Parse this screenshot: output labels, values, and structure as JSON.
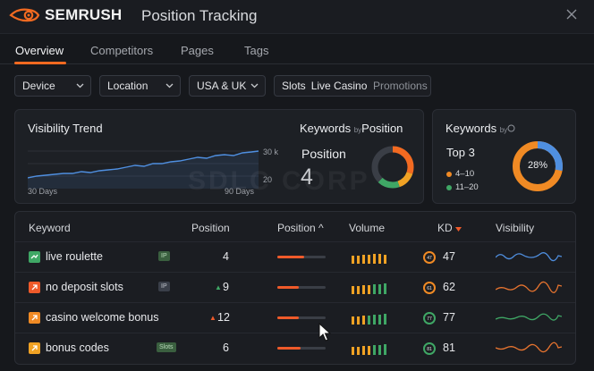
{
  "app": {
    "brand": "SEMRUSH",
    "title": "Position Tracking"
  },
  "tabs": [
    {
      "label": "Overview",
      "active": true
    },
    {
      "label": "Competitors",
      "active": false
    },
    {
      "label": "Pages",
      "active": false
    },
    {
      "label": "Tags",
      "active": false
    }
  ],
  "filters": {
    "device": "Device",
    "location": "Location",
    "region": "USA & UK",
    "slots_label": "Slots",
    "slots_value": "Live Casino",
    "promotions": "Promotions"
  },
  "visibility_card": {
    "title": "Visibility Trend",
    "y_top": "30 k",
    "y_bottom": "20",
    "x_left": "30 Days",
    "x_right": "90 Days"
  },
  "keywords_position_card": {
    "title_main": "Keywords",
    "title_by": "by",
    "title_sub": "Position",
    "label": "Position",
    "value": "4"
  },
  "keywords_by_card": {
    "title_main": "Keywords",
    "title_by": "by",
    "top_label": "Top 3",
    "legend": [
      {
        "label": "4–10",
        "color": "#f08a24"
      },
      {
        "label": "11–20",
        "color": "#3fa765"
      }
    ],
    "donut_center": "28%"
  },
  "watermark": "SDLC CORP",
  "table": {
    "headers": {
      "keyword": "Keyword",
      "position": "Position",
      "position2": "Position ^",
      "volume": "Volume",
      "kd": "KD",
      "visibility": "Visibility"
    },
    "rows": [
      {
        "keyword": "live roulette",
        "badge": "IP",
        "position": "4",
        "change": "",
        "kd": "47",
        "kd_small": "47",
        "icon_color": "#3fa765",
        "spark_color": "#4f8fe0",
        "pos_fill": 0.55
      },
      {
        "keyword": "no deposit slots",
        "badge": "IP",
        "position": "9",
        "change": "▲",
        "kd": "62",
        "kd_small": "61",
        "icon_color": "#ef5a2a",
        "spark_color": "#e8742f",
        "pos_fill": 0.45
      },
      {
        "keyword": "casino welcome bonus",
        "badge": "",
        "position": "12",
        "change": "▲",
        "kd": "77",
        "kd_small": "77",
        "icon_color": "#f08a24",
        "spark_color": "#3fa765",
        "pos_fill": 0.45
      },
      {
        "keyword": "bonus codes",
        "badge": "Slots",
        "position": "6",
        "change": "",
        "kd": "81",
        "kd_small": "81",
        "icon_color": "#f0a224",
        "spark_color": "#e8742f",
        "pos_fill": 0.48
      }
    ]
  },
  "colors": {
    "accent": "#f26a21",
    "blue": "#4f8fe0",
    "green": "#3fa765"
  }
}
